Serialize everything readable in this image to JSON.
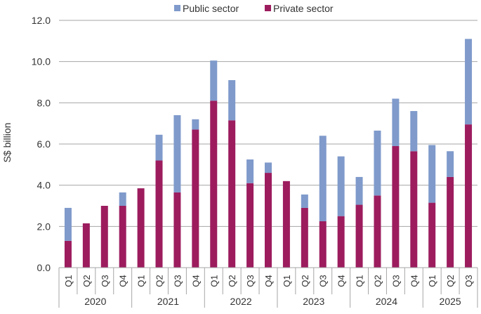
{
  "chart_data": {
    "type": "bar",
    "stacked": true,
    "title": "",
    "xlabel": "",
    "ylabel": "S$ billion",
    "ylim": [
      0,
      12
    ],
    "yticks": [
      0,
      2,
      4,
      6,
      8,
      10,
      12
    ],
    "ytick_labels": [
      "0.0",
      "2.0",
      "4.0",
      "6.0",
      "8.0",
      "10.0",
      "12.0"
    ],
    "grid": true,
    "legend_position": "top",
    "categories": [
      "Q1",
      "Q2",
      "Q3",
      "Q4",
      "Q1",
      "Q2",
      "Q3",
      "Q4",
      "Q1",
      "Q2",
      "Q3",
      "Q4",
      "Q1",
      "Q2",
      "Q3",
      "Q4",
      "Q1",
      "Q2",
      "Q3",
      "Q4",
      "Q1",
      "Q2",
      "Q3"
    ],
    "year_groups": [
      {
        "label": "2020",
        "count": 4
      },
      {
        "label": "2021",
        "count": 4
      },
      {
        "label": "2022",
        "count": 4
      },
      {
        "label": "2023",
        "count": 4
      },
      {
        "label": "2024",
        "count": 4
      },
      {
        "label": "2025",
        "count": 3
      }
    ],
    "series": [
      {
        "name": "Private sector",
        "color": "#9C1C5E",
        "values": [
          1.3,
          2.15,
          3.0,
          3.0,
          3.85,
          5.2,
          3.65,
          6.7,
          8.1,
          7.15,
          4.1,
          4.6,
          4.2,
          2.9,
          2.25,
          2.5,
          3.05,
          3.5,
          5.9,
          5.65,
          3.15,
          4.4,
          6.95
        ]
      },
      {
        "name": "Public sector",
        "color": "#7F9ACB",
        "values": [
          1.6,
          0.0,
          0.0,
          0.65,
          0.0,
          1.25,
          3.75,
          0.5,
          1.95,
          1.95,
          1.15,
          0.5,
          0.0,
          0.65,
          4.15,
          2.9,
          1.35,
          3.15,
          2.3,
          1.95,
          2.8,
          1.25,
          4.15
        ]
      }
    ],
    "legend_order": [
      "Public sector",
      "Private sector"
    ]
  }
}
